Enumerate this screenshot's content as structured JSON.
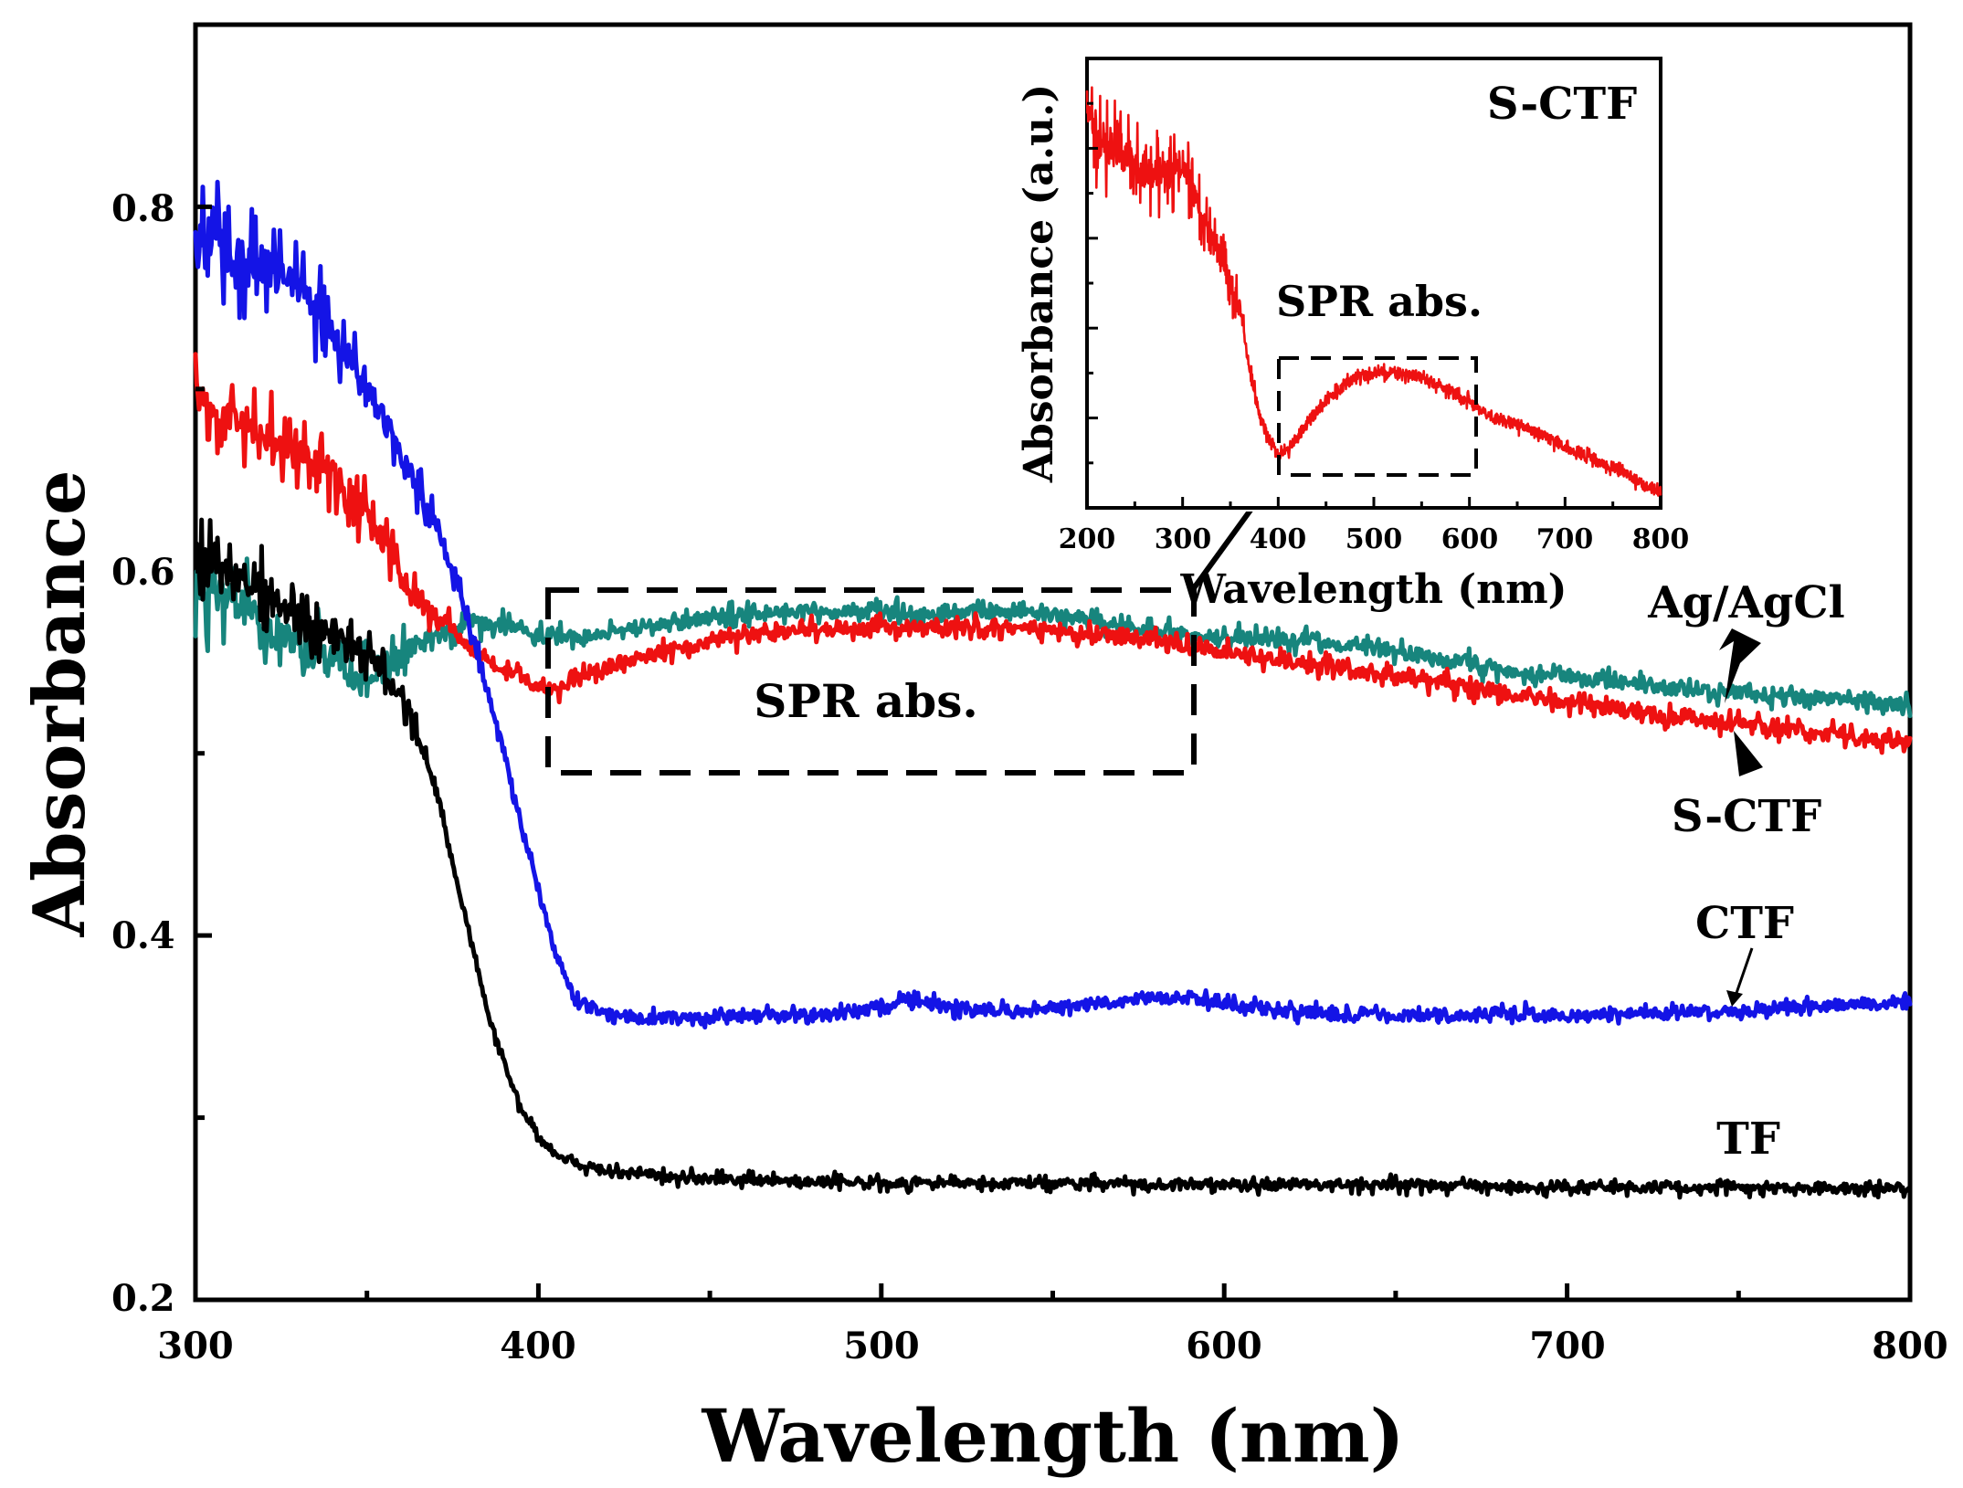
{
  "chart_data": [
    {
      "type": "line",
      "title": "",
      "xlabel": "Wavelength (nm)",
      "ylabel": "Absorbance",
      "xlim": [
        300,
        800
      ],
      "ylim": [
        0.2,
        0.9
      ],
      "xticks": [
        300,
        400,
        500,
        600,
        700,
        800
      ],
      "xtick_labels": [
        "300",
        "400",
        "500",
        "600",
        "700",
        "800"
      ],
      "yticks": [
        0.2,
        0.4,
        0.6,
        0.8
      ],
      "ytick_labels": [
        "0.2",
        "0.4",
        "0.6",
        "0.8"
      ],
      "grid": false,
      "series": [
        {
          "name": "Ag/AgCl",
          "color": "#17857d",
          "noise": 0.003,
          "spikes": [
            [
              300,
              0.032
            ],
            [
              340,
              0.03
            ],
            [
              370,
              0.012
            ],
            [
              400,
              0.006
            ]
          ],
          "x": [
            300,
            305,
            310,
            320,
            330,
            340,
            345,
            350,
            355,
            360,
            365,
            370,
            375,
            380,
            390,
            400,
            410,
            420,
            440,
            460,
            480,
            500,
            520,
            540,
            550,
            560,
            580,
            600,
            620,
            650,
            680,
            700,
            730,
            760,
            780,
            800
          ],
          "y": [
            0.595,
            0.585,
            0.585,
            0.57,
            0.56,
            0.55,
            0.545,
            0.54,
            0.548,
            0.555,
            0.56,
            0.565,
            0.568,
            0.572,
            0.57,
            0.565,
            0.564,
            0.567,
            0.572,
            0.577,
            0.578,
            0.577,
            0.577,
            0.578,
            0.577,
            0.573,
            0.567,
            0.564,
            0.563,
            0.556,
            0.546,
            0.542,
            0.536,
            0.532,
            0.53,
            0.526
          ]
        },
        {
          "name": "S-CTF",
          "color": "#ee1111",
          "noise": 0.003,
          "spikes": [
            [
              300,
              0.026
            ],
            [
              340,
              0.024
            ],
            [
              360,
              0.016
            ],
            [
              380,
              0.006
            ]
          ],
          "x": [
            300,
            305,
            310,
            320,
            330,
            340,
            350,
            355,
            360,
            370,
            380,
            390,
            400,
            405,
            410,
            420,
            440,
            460,
            480,
            500,
            520,
            540,
            560,
            580,
            600,
            620,
            650,
            680,
            700,
            730,
            760,
            780,
            800
          ],
          "y": [
            0.7,
            0.69,
            0.685,
            0.675,
            0.665,
            0.655,
            0.63,
            0.62,
            0.595,
            0.575,
            0.558,
            0.545,
            0.538,
            0.536,
            0.54,
            0.547,
            0.557,
            0.565,
            0.568,
            0.569,
            0.569,
            0.569,
            0.566,
            0.562,
            0.556,
            0.55,
            0.542,
            0.534,
            0.528,
            0.52,
            0.514,
            0.51,
            0.506
          ]
        },
        {
          "name": "CTF",
          "color": "#1414e6",
          "noise": 0.003,
          "spikes": [
            [
              300,
              0.03
            ],
            [
              340,
              0.03
            ],
            [
              365,
              0.018
            ],
            [
              380,
              0.008
            ],
            [
              400,
              0.004
            ]
          ],
          "x": [
            300,
            305,
            310,
            320,
            330,
            340,
            350,
            355,
            360,
            365,
            370,
            375,
            380,
            385,
            390,
            395,
            400,
            405,
            410,
            415,
            420,
            440,
            460,
            480,
            500,
            510,
            520,
            540,
            560,
            580,
            590,
            600,
            620,
            650,
            680,
            700,
            730,
            760,
            780,
            800
          ],
          "y": [
            0.78,
            0.79,
            0.77,
            0.77,
            0.755,
            0.73,
            0.7,
            0.685,
            0.66,
            0.645,
            0.625,
            0.6,
            0.57,
            0.535,
            0.5,
            0.46,
            0.425,
            0.39,
            0.368,
            0.36,
            0.356,
            0.354,
            0.356,
            0.356,
            0.36,
            0.366,
            0.36,
            0.358,
            0.362,
            0.366,
            0.366,
            0.362,
            0.358,
            0.356,
            0.357,
            0.356,
            0.358,
            0.359,
            0.362,
            0.364
          ]
        },
        {
          "name": "TF",
          "color": "#000000",
          "noise": 0.002,
          "spikes": [
            [
              300,
              0.022
            ],
            [
              340,
              0.022
            ],
            [
              360,
              0.01
            ],
            [
              380,
              0.004
            ]
          ],
          "x": [
            300,
            305,
            310,
            320,
            330,
            340,
            350,
            355,
            360,
            365,
            370,
            375,
            380,
            385,
            390,
            395,
            400,
            405,
            410,
            415,
            420,
            440,
            460,
            480,
            500,
            550,
            600,
            650,
            700,
            750,
            800
          ],
          "y": [
            0.61,
            0.605,
            0.6,
            0.59,
            0.575,
            0.565,
            0.555,
            0.545,
            0.53,
            0.51,
            0.48,
            0.44,
            0.4,
            0.36,
            0.33,
            0.305,
            0.29,
            0.28,
            0.275,
            0.272,
            0.27,
            0.267,
            0.266,
            0.265,
            0.264,
            0.264,
            0.263,
            0.263,
            0.262,
            0.262,
            0.261
          ]
        }
      ],
      "annotations": [
        {
          "text": "SPR abs.",
          "kind": "dashed-box-label",
          "box_x": [
            402,
            590
          ],
          "box_y": [
            0.49,
            0.59
          ]
        },
        {
          "text": "Ag/AgCl",
          "kind": "curve-label",
          "points_to_x": 748
        },
        {
          "text": "S-CTF",
          "kind": "curve-label",
          "points_to_x": 748
        },
        {
          "text": "CTF",
          "kind": "curve-label",
          "points_to_x": 748
        },
        {
          "text": "TF",
          "kind": "curve-label"
        }
      ]
    },
    {
      "type": "line",
      "title": "S-CTF",
      "role": "inset",
      "xlabel": "Wavelength (nm)",
      "ylabel": "Absorbance (a.u.)",
      "xlim": [
        200,
        800
      ],
      "ylim": [
        0,
        1
      ],
      "xticks": [
        200,
        300,
        400,
        500,
        600,
        700,
        800
      ],
      "xtick_labels": [
        "200",
        "300",
        "400",
        "500",
        "600",
        "700",
        "800"
      ],
      "y_tick_labels_shown": false,
      "grid": false,
      "series": [
        {
          "name": "S-CTF",
          "color": "#ee1111",
          "noise": 0.012,
          "spikes": [
            [
              200,
              0.12
            ],
            [
              250,
              0.1
            ],
            [
              300,
              0.09
            ],
            [
              340,
              0.07
            ],
            [
              360,
              0.05
            ],
            [
              380,
              0.012
            ]
          ],
          "x": [
            200,
            205,
            215,
            230,
            250,
            270,
            290,
            300,
            310,
            320,
            330,
            340,
            350,
            360,
            370,
            380,
            390,
            400,
            410,
            420,
            440,
            460,
            480,
            500,
            520,
            540,
            560,
            580,
            600,
            620,
            650,
            680,
            700,
            720,
            750,
            780,
            800
          ],
          "y": [
            0.9,
            0.86,
            0.8,
            0.8,
            0.76,
            0.74,
            0.75,
            0.75,
            0.72,
            0.66,
            0.6,
            0.56,
            0.5,
            0.44,
            0.31,
            0.21,
            0.15,
            0.12,
            0.13,
            0.16,
            0.215,
            0.26,
            0.29,
            0.3,
            0.3,
            0.295,
            0.28,
            0.26,
            0.235,
            0.205,
            0.185,
            0.16,
            0.135,
            0.115,
            0.09,
            0.055,
            0.035
          ]
        }
      ],
      "annotations": [
        {
          "text": "SPR abs.",
          "kind": "dashed-box-label",
          "box_x": [
            402,
            610
          ],
          "box_y": [
            0.12,
            0.36
          ]
        }
      ]
    }
  ]
}
